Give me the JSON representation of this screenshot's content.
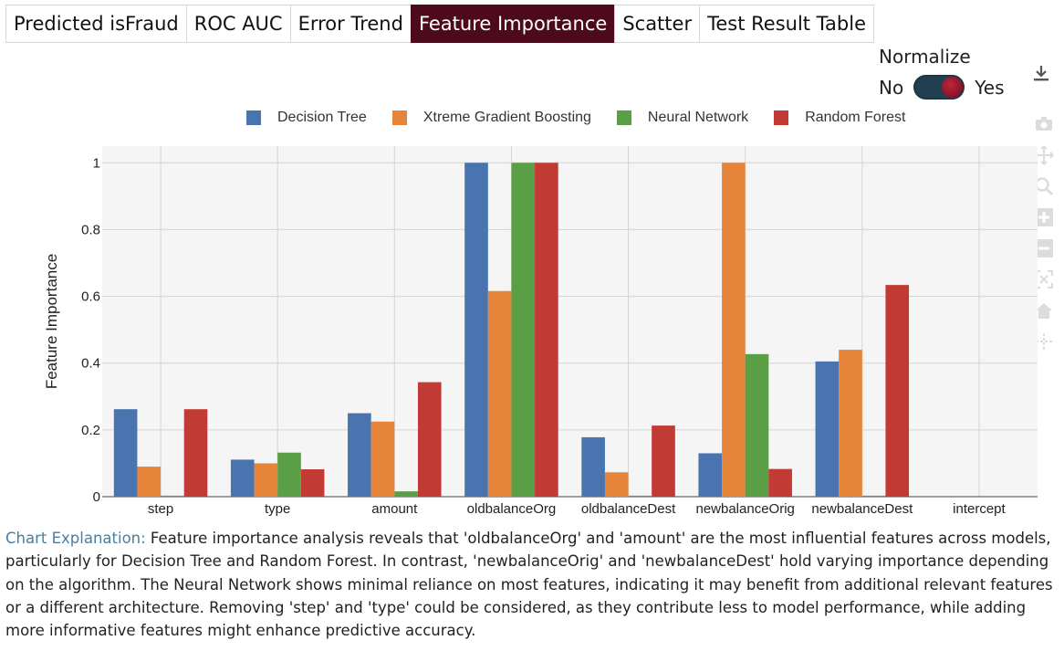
{
  "tabs": [
    {
      "label": "Predicted isFraud",
      "active": false
    },
    {
      "label": "ROC AUC",
      "active": false
    },
    {
      "label": "Error Trend",
      "active": false
    },
    {
      "label": "Feature Importance",
      "active": true
    },
    {
      "label": "Scatter",
      "active": false
    },
    {
      "label": "Test Result Table",
      "active": false
    }
  ],
  "normalize": {
    "label": "Normalize",
    "off_label": "No",
    "on_label": "Yes",
    "value": true
  },
  "colors": {
    "active_tab": "#4d0a1c",
    "toggle_track": "#22404f",
    "toggle_knob": "#a81c32",
    "lead_text": "#4a7ea0"
  },
  "chart_data": {
    "type": "bar",
    "categories": [
      "step",
      "type",
      "amount",
      "oldbalanceOrg",
      "oldbalanceDest",
      "newbalanceOrig",
      "newbalanceDest",
      "intercept"
    ],
    "series": [
      {
        "name": "Decision Tree",
        "color": "#4a74af",
        "values": [
          0.262,
          0.111,
          0.25,
          1.0,
          0.178,
          0.13,
          0.405,
          0
        ]
      },
      {
        "name": "Xtreme Gradient Boosting",
        "color": "#e6853a",
        "values": [
          0.09,
          0.1,
          0.225,
          0.616,
          0.073,
          1.0,
          0.44,
          0
        ]
      },
      {
        "name": "Neural Network",
        "color": "#5a9e45",
        "values": [
          0.003,
          0.132,
          0.016,
          1.0,
          0.003,
          0.427,
          0.003,
          0
        ]
      },
      {
        "name": "Random Forest",
        "color": "#c23a34",
        "values": [
          0.262,
          0.082,
          0.343,
          1.0,
          0.213,
          0.083,
          0.634,
          0
        ]
      }
    ],
    "ylabel": "Feature Importance",
    "ylim": [
      0,
      1.05
    ],
    "yticks": [
      0,
      0.2,
      0.4,
      0.6,
      0.8,
      1
    ],
    "ytick_labels": [
      "0",
      "0.2",
      "0.4",
      "0.6",
      "0.8",
      "1"
    ],
    "grid": true,
    "legend_position": "top"
  },
  "explanation": {
    "lead": "Chart Explanation:",
    "text": " Feature importance analysis reveals that 'oldbalanceOrg' and 'amount' are the most influential features across models, particularly for Decision Tree and Random Forest. In contrast, 'newbalanceOrig' and 'newbalanceDest' hold varying importance depending on the algorithm. The Neural Network shows minimal reliance on most features, indicating it may benefit from additional relevant features or a different architecture. Removing 'step' and 'type' could be considered, as they contribute less to model performance, while adding more informative features might enhance predictive accuracy."
  }
}
